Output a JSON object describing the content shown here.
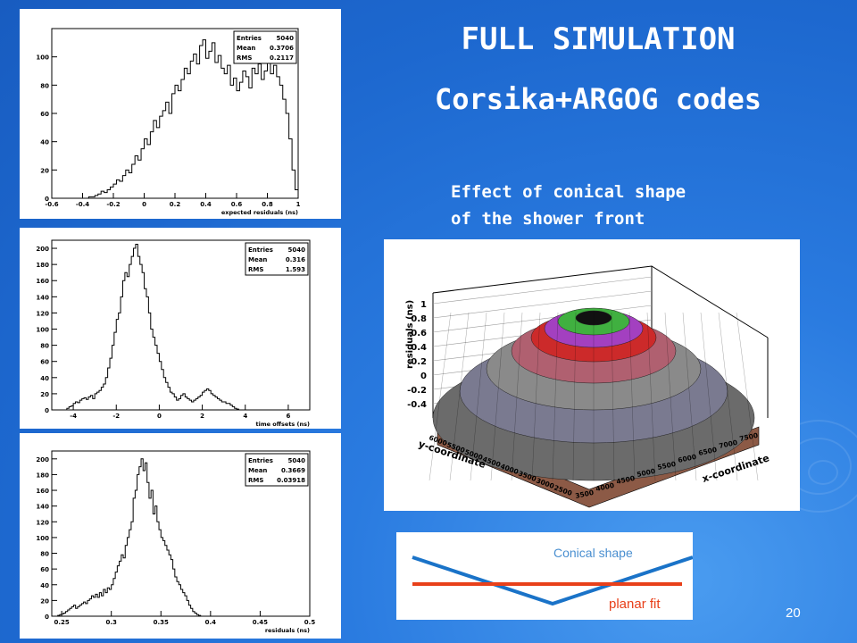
{
  "slide": {
    "title": "FULL SIMULATION",
    "subtitle": "Corsika+ARGOG codes",
    "note_line1": "Effect of conical shape",
    "note_line2": "of the shower front",
    "page_number": "20",
    "background_color": "#1f6fd4"
  },
  "schematic": {
    "conical_label": "Conical shape",
    "planar_label": "planar fit",
    "cone_color": "#1a73c8",
    "planar_color": "#e8401a"
  },
  "chart_data": [
    {
      "type": "histogram",
      "xlabel": "expected residuals (ns)",
      "xlim": [
        -0.6,
        1.0
      ],
      "ylim": [
        0,
        120
      ],
      "xticks": [
        -0.6,
        -0.4,
        -0.2,
        0,
        0.2,
        0.4,
        0.6,
        0.8,
        1
      ],
      "xtick_labels": [
        "-0.6",
        "-0.4",
        "-0.2",
        "0",
        "0.2",
        "0.4",
        "0.6",
        "0.8",
        "1"
      ],
      "yticks": [
        0,
        20,
        40,
        60,
        80,
        100
      ],
      "stats": {
        "Entries": "5040",
        "Mean": "0.3706",
        "RMS": "0.2117"
      },
      "bin_width": 0.02,
      "bin_start": -0.6,
      "values": [
        0,
        0,
        0,
        0,
        0,
        0,
        0,
        0,
        0,
        0,
        0,
        0,
        1,
        1,
        2,
        3,
        5,
        4,
        6,
        8,
        10,
        13,
        12,
        16,
        20,
        18,
        24,
        30,
        27,
        35,
        42,
        38,
        47,
        55,
        50,
        58,
        62,
        68,
        60,
        74,
        80,
        76,
        84,
        92,
        88,
        97,
        102,
        95,
        108,
        112,
        99,
        104,
        110,
        96,
        101,
        92,
        88,
        94,
        80,
        85,
        76,
        82,
        90,
        86,
        78,
        92,
        88,
        95,
        84,
        90,
        96,
        88,
        94,
        86,
        80,
        70,
        60,
        42,
        20,
        6,
        0
      ]
    },
    {
      "type": "histogram",
      "xlabel": "time offsets (ns)",
      "xlim": [
        -5,
        7
      ],
      "ylim": [
        0,
        210
      ],
      "xticks": [
        -4,
        -2,
        0,
        2,
        4,
        6
      ],
      "xtick_labels": [
        "-4",
        "-2",
        "0",
        "2",
        "4",
        "6"
      ],
      "yticks": [
        0,
        20,
        40,
        60,
        80,
        100,
        120,
        140,
        160,
        180,
        200
      ],
      "stats": {
        "Entries": "5040",
        "Mean": "0.316",
        "RMS": "1.593"
      },
      "bin_width": 0.1,
      "bin_start": -4.5,
      "values": [
        0,
        0,
        2,
        4,
        5,
        8,
        10,
        9,
        12,
        14,
        15,
        13,
        16,
        18,
        14,
        20,
        22,
        24,
        28,
        32,
        40,
        52,
        64,
        80,
        96,
        112,
        120,
        140,
        160,
        170,
        165,
        180,
        190,
        200,
        205,
        190,
        180,
        170,
        150,
        140,
        120,
        100,
        90,
        80,
        70,
        60,
        50,
        40,
        34,
        28,
        22,
        20,
        16,
        12,
        14,
        18,
        20,
        16,
        14,
        12,
        10,
        12,
        14,
        16,
        18,
        22,
        24,
        26,
        24,
        20,
        18,
        16,
        14,
        12,
        10,
        10,
        8,
        8,
        6,
        4,
        2,
        1,
        0,
        0,
        0,
        0,
        0,
        0,
        0,
        0,
        0,
        0,
        0,
        0,
        0,
        0,
        0,
        0,
        0,
        0,
        0,
        0,
        0,
        0,
        0,
        0,
        0,
        0,
        0,
        0,
        0,
        0,
        0,
        0
      ]
    },
    {
      "type": "histogram",
      "xlabel": "residuals (ns)",
      "xlim": [
        0.24,
        0.5
      ],
      "ylim": [
        0,
        210
      ],
      "xticks": [
        0.25,
        0.3,
        0.35,
        0.4,
        0.45,
        0.5
      ],
      "xtick_labels": [
        "0.25",
        "0.3",
        "0.35",
        "0.4",
        "0.45",
        "0.5"
      ],
      "yticks": [
        0,
        20,
        40,
        60,
        80,
        100,
        120,
        140,
        160,
        180,
        200
      ],
      "stats": {
        "Entries": "5040",
        "Mean": "0.3669",
        "RMS": "0.03918"
      },
      "bin_width": 0.002,
      "bin_start": 0.24,
      "values": [
        0,
        0,
        0,
        1,
        2,
        3,
        4,
        6,
        8,
        10,
        12,
        14,
        10,
        12,
        14,
        16,
        18,
        16,
        20,
        22,
        26,
        24,
        28,
        24,
        30,
        26,
        34,
        30,
        36,
        34,
        40,
        48,
        56,
        64,
        70,
        78,
        74,
        90,
        100,
        110,
        120,
        150,
        160,
        180,
        190,
        200,
        185,
        195,
        170,
        150,
        160,
        130,
        140,
        120,
        110,
        100,
        96,
        90,
        84,
        78,
        72,
        60,
        50,
        44,
        40,
        34,
        30,
        26,
        20,
        14,
        10,
        6,
        4,
        2,
        1,
        0,
        0,
        0,
        0,
        0,
        0,
        0,
        0,
        0,
        0,
        0,
        0,
        0,
        0,
        0,
        0,
        0,
        0,
        0,
        0,
        0,
        0,
        0,
        0,
        0,
        0,
        0,
        0,
        0,
        0,
        0,
        0,
        0,
        0,
        0,
        0,
        0,
        0,
        0,
        0,
        0,
        0,
        0,
        0,
        0,
        0,
        0,
        0,
        0,
        0,
        0,
        0
      ]
    },
    {
      "type": "surface3d",
      "zlabel": "residuals (ns)",
      "xlabel": "x-coordinate",
      "ylabel": "y-coordinate",
      "zticks": [
        "1",
        "0.8",
        "0.6",
        "0.4",
        "0.2",
        "0",
        "-0.2",
        "-0.4"
      ],
      "xticks": [
        "3500",
        "4000",
        "4500",
        "5000",
        "5500",
        "6000",
        "6500",
        "7000",
        "7500"
      ],
      "yticks": [
        "2500",
        "3000",
        "3500",
        "4000",
        "4500",
        "5000",
        "5500",
        "6000"
      ]
    }
  ]
}
